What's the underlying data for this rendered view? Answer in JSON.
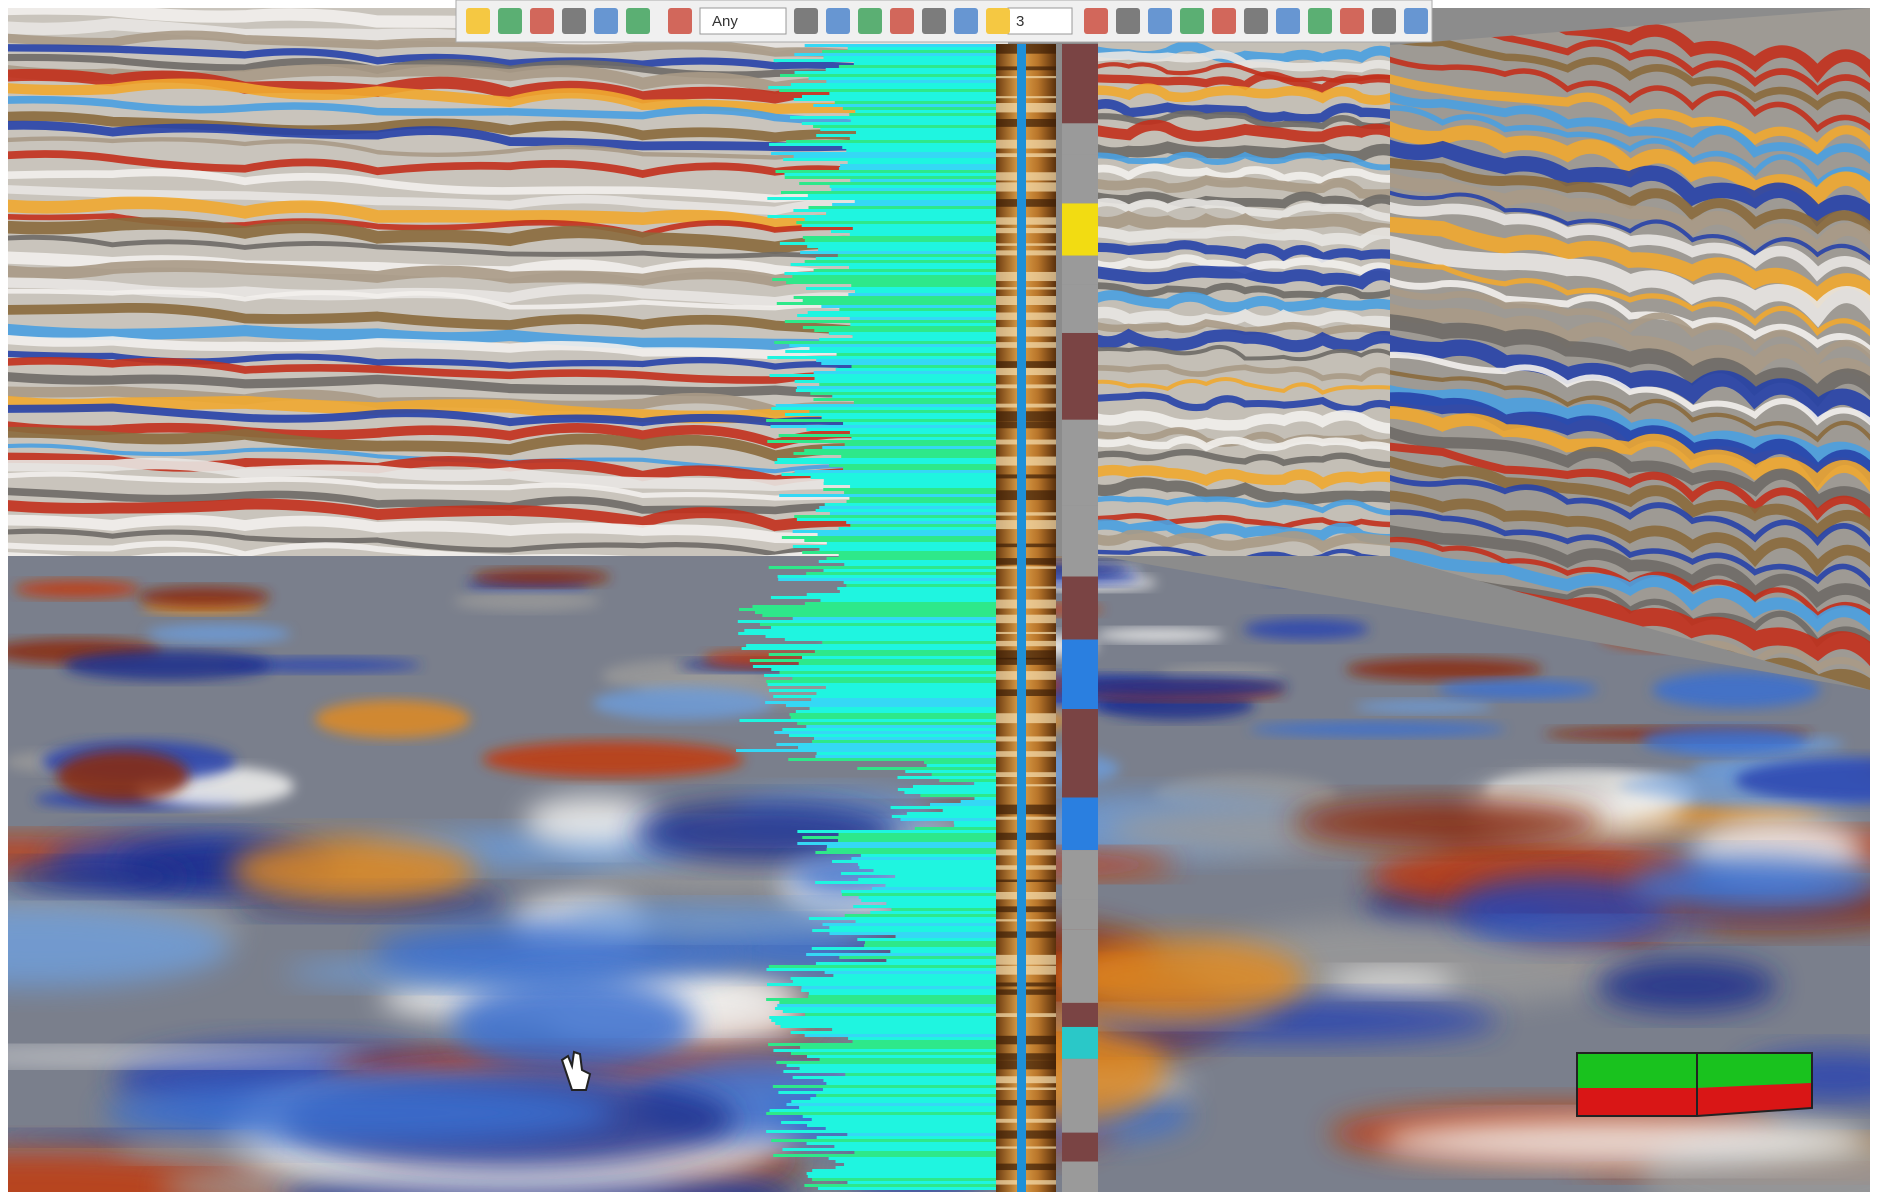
{
  "toolbar": {
    "filter_dropdown": "Any",
    "count_dropdown": "3"
  }
}
